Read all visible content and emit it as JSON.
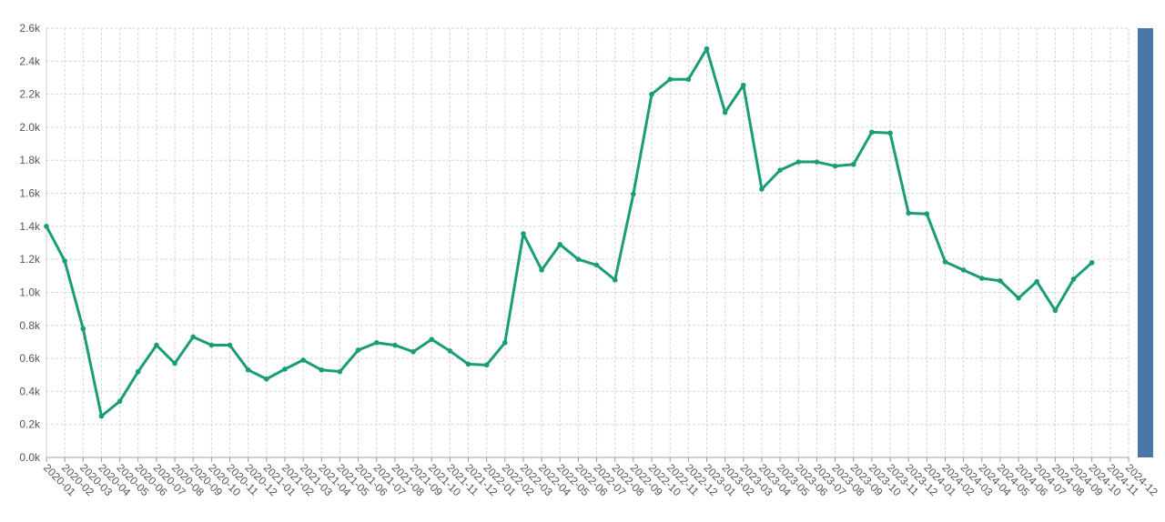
{
  "chart_data": {
    "type": "line",
    "categories": [
      "2020-01",
      "2020-02",
      "2020-03",
      "2020-04",
      "2020-05",
      "2020-06",
      "2020-07",
      "2020-08",
      "2020-09",
      "2020-10",
      "2020-11",
      "2020-12",
      "2021-01",
      "2021-02",
      "2021-03",
      "2021-04",
      "2021-05",
      "2021-06",
      "2021-07",
      "2021-08",
      "2021-09",
      "2021-10",
      "2021-11",
      "2021-12",
      "2022-01",
      "2022-02",
      "2022-03",
      "2022-04",
      "2022-05",
      "2022-06",
      "2022-07",
      "2022-08",
      "2022-09",
      "2022-10",
      "2022-11",
      "2022-12",
      "2023-01",
      "2023-02",
      "2023-03",
      "2023-04",
      "2023-05",
      "2023-06",
      "2023-07",
      "2023-08",
      "2023-09",
      "2023-10",
      "2023-11",
      "2023-12",
      "2024-01",
      "2024-02",
      "2024-03",
      "2024-04",
      "2024-05",
      "2024-06",
      "2024-07",
      "2024-08",
      "2024-09",
      "2024-10",
      "2024-11",
      "2024-12"
    ],
    "series": [
      {
        "color": "#1a9c78",
        "values": [
          1400,
          1190,
          780,
          250,
          340,
          520,
          680,
          570,
          730,
          680,
          680,
          530,
          475,
          535,
          590,
          530,
          520,
          650,
          695,
          680,
          640,
          715,
          645,
          565,
          560,
          695,
          1355,
          1135,
          1290,
          1200,
          1165,
          1075,
          1595,
          2200,
          2290,
          2290,
          2475,
          2090,
          2255,
          1625,
          1740,
          1790,
          1790,
          1765,
          1775,
          1970,
          1965,
          1480,
          1475,
          1185,
          1135,
          1085,
          1070,
          965,
          1065,
          890,
          1080,
          1180,
          null,
          null
        ]
      }
    ],
    "ylim": [
      0,
      2600
    ],
    "yticks": [
      {
        "value": 0,
        "label": "0.0k"
      },
      {
        "value": 200,
        "label": "0.2k"
      },
      {
        "value": 400,
        "label": "0.4k"
      },
      {
        "value": 600,
        "label": "0.6k"
      },
      {
        "value": 800,
        "label": "0.8k"
      },
      {
        "value": 1000,
        "label": "1.0k"
      },
      {
        "value": 1200,
        "label": "1.2k"
      },
      {
        "value": 1400,
        "label": "1.4k"
      },
      {
        "value": 1600,
        "label": "1.6k"
      },
      {
        "value": 1800,
        "label": "1.8k"
      },
      {
        "value": 2000,
        "label": "2.0k"
      },
      {
        "value": 2200,
        "label": "2.2k"
      },
      {
        "value": 2400,
        "label": "2.4k"
      },
      {
        "value": 2600,
        "label": "2.6k"
      }
    ],
    "grid": true
  }
}
